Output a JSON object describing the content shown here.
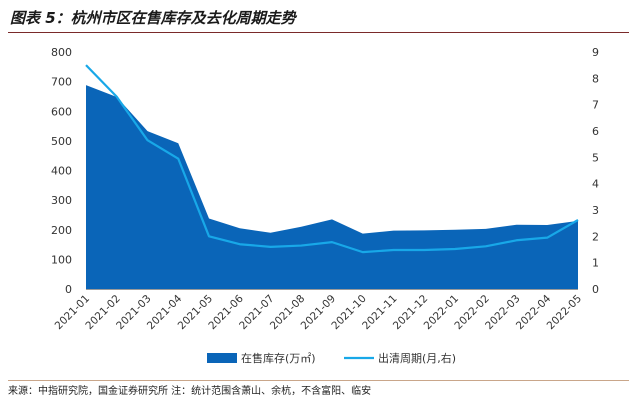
{
  "title": "图表 5：杭州市区在售库存及去化周期走势",
  "source": "来源：中指研究院，国金证券研究所 注：统计范围含萧山、余杭，不含富阳、临安",
  "colors": {
    "area": "#0a65b8",
    "line": "#18a8e8",
    "rule": "#7a2a2a"
  },
  "chart_data": {
    "type": "area",
    "x": [
      "2021-01",
      "2021-02",
      "2021-03",
      "2021-04",
      "2021-05",
      "2021-06",
      "2021-07",
      "2021-08",
      "2021-09",
      "2021-10",
      "2021-11",
      "2021-12",
      "2022-01",
      "2022-02",
      "2022-03",
      "2022-04",
      "2022-05"
    ],
    "y_left_ticks": [
      "800",
      "700",
      "600",
      "500",
      "400",
      "300",
      "200",
      "100",
      "0"
    ],
    "y_right_ticks": [
      "9",
      "8",
      "7",
      "6",
      "5",
      "4",
      "3",
      "2",
      "1",
      "0"
    ],
    "ylim_left": [
      0,
      800
    ],
    "ylim_right": [
      0,
      9
    ],
    "series": [
      {
        "name": "在售库存(万㎡)",
        "type": "area",
        "axis": "left",
        "values": [
          688,
          648,
          533,
          492,
          238,
          205,
          190,
          210,
          235,
          187,
          197,
          198,
          200,
          203,
          217,
          216,
          230
        ]
      },
      {
        "name": "出清周期(月,右)",
        "type": "line",
        "axis": "right",
        "values": [
          8.5,
          7.3,
          5.65,
          4.95,
          2.0,
          1.7,
          1.6,
          1.65,
          1.78,
          1.4,
          1.48,
          1.48,
          1.52,
          1.62,
          1.85,
          1.95,
          2.62
        ]
      }
    ],
    "legend_position": "bottom",
    "grid": false
  }
}
